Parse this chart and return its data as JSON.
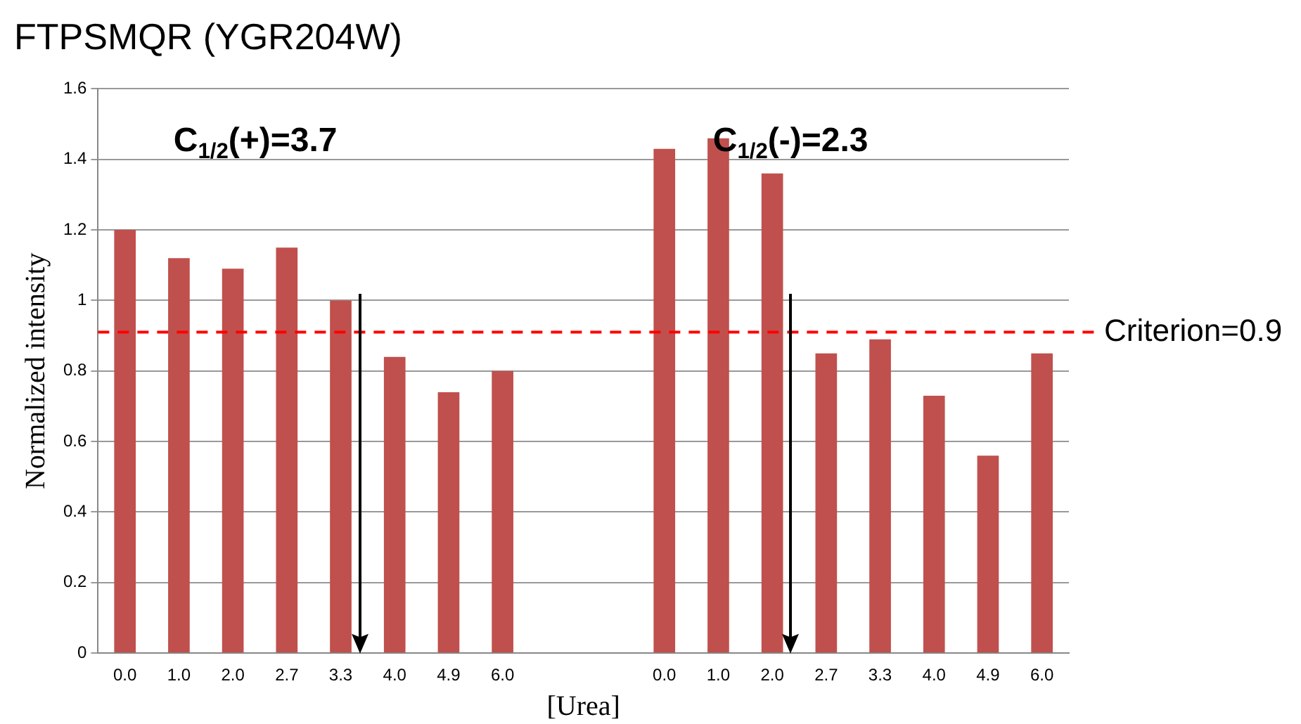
{
  "chart_data": {
    "type": "bar",
    "title": "FTPSMQR (YGR204W)",
    "xlabel": "[Urea]",
    "ylabel": "Normalized intensity",
    "categories": [
      "0.0",
      "1.0",
      "2.0",
      "2.7",
      "3.3",
      "4.0",
      "4.9",
      "6.0",
      null,
      null,
      "0.0",
      "1.0",
      "2.0",
      "2.7",
      "3.3",
      "4.0",
      "4.9",
      "6.0"
    ],
    "values": [
      1.2,
      1.12,
      1.09,
      1.15,
      1.0,
      0.84,
      0.74,
      0.8,
      null,
      null,
      1.43,
      1.46,
      1.36,
      0.85,
      0.89,
      0.73,
      0.56,
      0.85
    ],
    "color": "#c0504d",
    "ylim": [
      0,
      1.6
    ],
    "yticks": [
      0,
      0.2,
      0.4,
      0.6,
      0.8,
      1,
      1.2,
      1.4,
      1.6
    ],
    "grid": "y",
    "legend": false,
    "ref_lines": [
      {
        "axis": "y",
        "value": 0.91,
        "label": "Criterion=0.9",
        "color": "#ff0000",
        "line_style": "dashed"
      }
    ],
    "annotations": [
      "C$_{1/2}$(+)=3.7",
      "C$_{1/2}$(-)=2.3"
    ]
  }
}
